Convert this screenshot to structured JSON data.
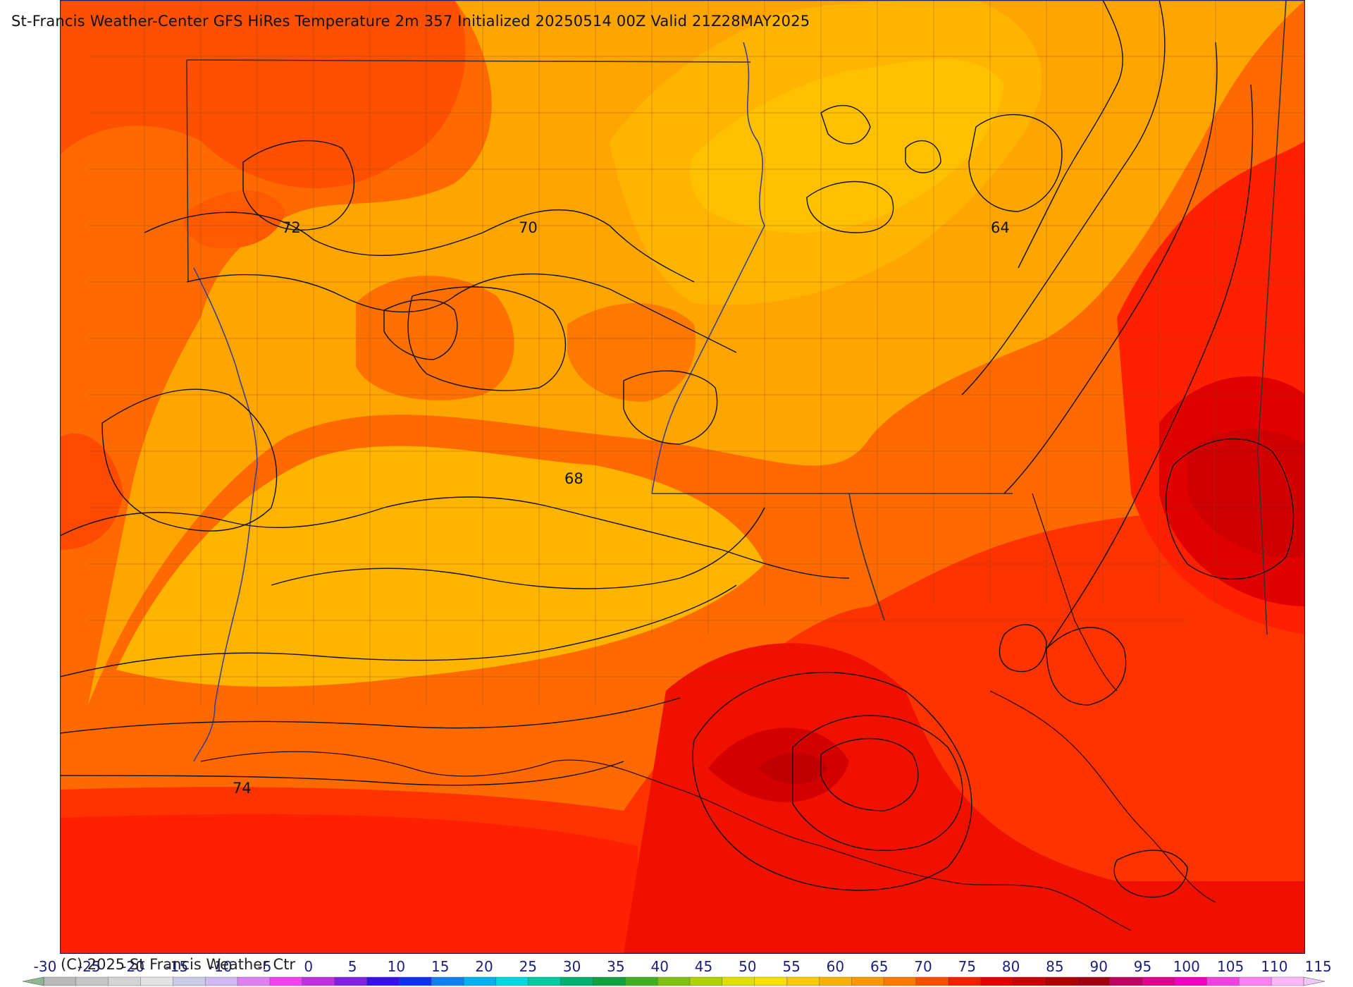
{
  "title": "St-Francis Weather-Center GFS HiRes Temperature 2m  357 Initialized 20250514 00Z Valid 21Z28MAY2025",
  "copyright": "(C) 2025 St Francis Weather Ctr",
  "contour_labels": [
    "72",
    "70",
    "64",
    "68",
    "74"
  ],
  "legend": {
    "labels": [
      "-30",
      "-25",
      "-20",
      "-15",
      "-10",
      "-5",
      "0",
      "5",
      "10",
      "15",
      "20",
      "25",
      "30",
      "35",
      "40",
      "45",
      "50",
      "55",
      "60",
      "65",
      "70",
      "75",
      "80",
      "85",
      "90",
      "95",
      "100",
      "105",
      "110",
      "115"
    ],
    "colors": [
      "#b8b8b8",
      "#c6c6c6",
      "#d4d4d4",
      "#e2e2e2",
      "#c9c9e8",
      "#d0b8f0",
      "#e080f0",
      "#f040f0",
      "#c030e0",
      "#8020e0",
      "#3a10e8",
      "#1030f0",
      "#1080f0",
      "#00b0f0",
      "#00d8e0",
      "#00c8a0",
      "#00b070",
      "#10a040",
      "#40b020",
      "#80c010",
      "#b0d000",
      "#e0e000",
      "#f8e000",
      "#f8c800",
      "#f8b000",
      "#f89800",
      "#f87800",
      "#f85000",
      "#f02000",
      "#e00000",
      "#c80000",
      "#b00000",
      "#a00010",
      "#c00060",
      "#e00090",
      "#f000c0",
      "#f040e0",
      "#f880f0",
      "#fcb8f8"
    ]
  }
}
